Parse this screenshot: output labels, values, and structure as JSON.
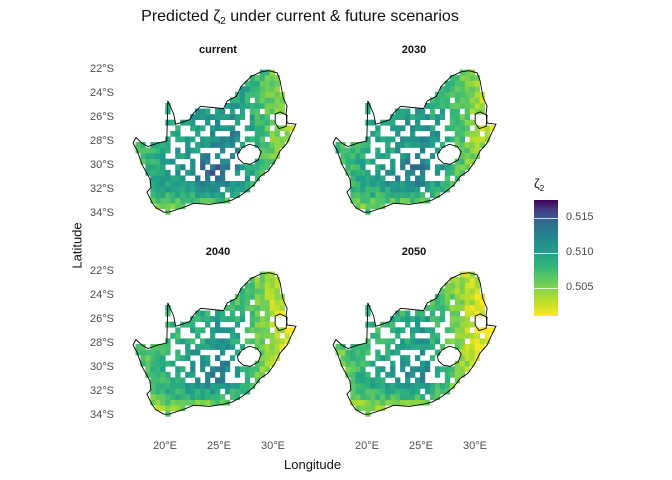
{
  "plot": {
    "title_prefix": "Predicted ζ",
    "title_sub": "2",
    "title_suffix": " under current & future scenarios",
    "xlabel": "Longitude",
    "ylabel": "Latitude"
  },
  "panels": [
    {
      "label": "current",
      "seed": 1,
      "shift": 0.0
    },
    {
      "label": "2030",
      "seed": 2,
      "shift": -0.0008
    },
    {
      "label": "2040",
      "seed": 3,
      "shift": -0.0016
    },
    {
      "label": "2050",
      "seed": 4,
      "shift": -0.0022
    }
  ],
  "axes": {
    "y_ticks": [
      {
        "label": "22°S",
        "value": -22
      },
      {
        "label": "24°S",
        "value": -24
      },
      {
        "label": "26°S",
        "value": -26
      },
      {
        "label": "28°S",
        "value": -28
      },
      {
        "label": "30°S",
        "value": -30
      },
      {
        "label": "32°S",
        "value": -32
      },
      {
        "label": "34°S",
        "value": -34
      }
    ],
    "x_ticks": [
      {
        "label": "20°E",
        "value": 20
      },
      {
        "label": "25°E",
        "value": 25
      },
      {
        "label": "30°E",
        "value": 30
      }
    ],
    "lon_range": [
      16.0,
      33.5
    ],
    "lat_range": [
      -35.5,
      -21.5
    ]
  },
  "legend": {
    "title_prefix": "ζ",
    "title_sub": "2",
    "range": [
      0.501,
      0.5175
    ],
    "ticks": [
      {
        "label": "0.515",
        "value": 0.515
      },
      {
        "label": "0.510",
        "value": 0.51
      },
      {
        "label": "0.505",
        "value": 0.505
      }
    ],
    "colormap": "viridis-reversed"
  },
  "colors": {
    "border": "#000000",
    "low": "#fde725",
    "mid": "#21918c",
    "high": "#440154"
  }
}
